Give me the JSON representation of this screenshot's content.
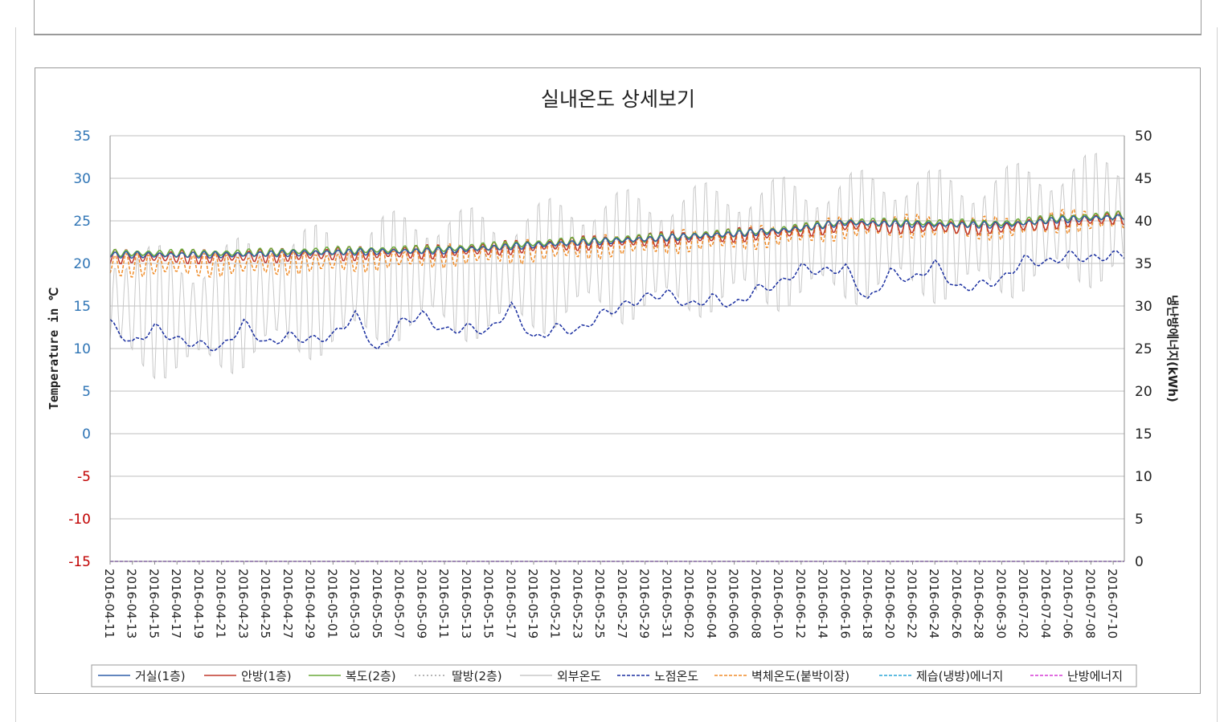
{
  "chart_data": {
    "type": "line",
    "title": "실내온도 상세보기",
    "ylabel": "Temperature in ℃",
    "y2label": "냉난방에너지(kWh)",
    "ylim": [
      -15,
      35
    ],
    "y2lim": [
      0,
      50
    ],
    "yticks": [
      "35",
      "30",
      "25",
      "20",
      "15",
      "10",
      "5",
      "0",
      "-5",
      "-10",
      "-15"
    ],
    "y2ticks": [
      "50",
      "45",
      "40",
      "35",
      "30",
      "25",
      "20",
      "15",
      "10",
      "5",
      "0"
    ],
    "grid": true,
    "legend_position": "bottom",
    "colors": {
      "title": "#222222",
      "ytick_positive": "#2e74b5",
      "ytick_negative": "#c00000",
      "grid": "#bfbfbf",
      "axis": "#8c8c8c"
    },
    "x_range": [
      "2016-04-11",
      "2016-07-11"
    ],
    "x_ticks": [
      "2016-04-11",
      "2016-04-13",
      "2016-04-15",
      "2016-04-17",
      "2016-04-19",
      "2016-04-21",
      "2016-04-23",
      "2016-04-25",
      "2016-04-27",
      "2016-04-29",
      "2016-05-01",
      "2016-05-03",
      "2016-05-05",
      "2016-05-07",
      "2016-05-09",
      "2016-05-11",
      "2016-05-13",
      "2016-05-15",
      "2016-05-17",
      "2016-05-19",
      "2016-05-21",
      "2016-05-23",
      "2016-05-25",
      "2016-05-27",
      "2016-05-29",
      "2016-05-31",
      "2016-06-02",
      "2016-06-04",
      "2016-06-06",
      "2016-06-08",
      "2016-06-10",
      "2016-06-12",
      "2016-06-14",
      "2016-06-16",
      "2016-06-18",
      "2016-06-20",
      "2016-06-22",
      "2016-06-24",
      "2016-06-26",
      "2016-06-28",
      "2016-06-30",
      "2016-07-02",
      "2016-07-04",
      "2016-07-06",
      "2016-07-08",
      "2016-07-10"
    ],
    "series": [
      {
        "name": "거실(1층)",
        "color": "#2e5ea8",
        "dash": "solid",
        "axis": "left",
        "x": [
          "2016-04-11",
          "2016-04-21",
          "2016-05-01",
          "2016-05-11",
          "2016-05-21",
          "2016-05-31",
          "2016-06-10",
          "2016-06-16",
          "2016-06-22",
          "2016-06-30",
          "2016-07-05",
          "2016-07-11"
        ],
        "y": [
          21.0,
          21.0,
          21.3,
          21.5,
          22.3,
          23.0,
          23.8,
          24.8,
          24.6,
          24.5,
          25.1,
          25.5
        ],
        "daily_swing": 0.4
      },
      {
        "name": "안방(1층)",
        "color": "#c0392b",
        "dash": "solid",
        "axis": "left",
        "x": [
          "2016-04-11",
          "2016-04-21",
          "2016-05-01",
          "2016-05-11",
          "2016-05-21",
          "2016-05-31",
          "2016-06-10",
          "2016-06-16",
          "2016-06-22",
          "2016-06-30",
          "2016-07-05",
          "2016-07-11"
        ],
        "y": [
          20.8,
          20.8,
          21.1,
          21.4,
          22.2,
          22.9,
          23.6,
          24.5,
          24.3,
          24.2,
          24.9,
          25.4
        ],
        "daily_swing": 0.9
      },
      {
        "name": "복도(2층)",
        "color": "#6aaa3a",
        "dash": "solid",
        "axis": "left",
        "x": [
          "2016-04-11",
          "2016-04-21",
          "2016-05-01",
          "2016-05-11",
          "2016-05-21",
          "2016-05-31",
          "2016-06-10",
          "2016-06-16",
          "2016-06-22",
          "2016-06-30",
          "2016-07-05",
          "2016-07-11"
        ],
        "y": [
          21.2,
          21.2,
          21.5,
          21.7,
          22.5,
          23.1,
          23.9,
          24.9,
          24.8,
          24.7,
          25.3,
          25.7
        ],
        "daily_swing": 0.5
      },
      {
        "name": "딸방(2층)",
        "color": "#9e9e9e",
        "dash": "dot",
        "axis": "left",
        "x": [
          "2016-04-11",
          "2016-04-21",
          "2016-05-01",
          "2016-05-11",
          "2016-05-21",
          "2016-05-31",
          "2016-06-10",
          "2016-06-16",
          "2016-06-22",
          "2016-06-30",
          "2016-07-05",
          "2016-07-11"
        ],
        "y": [
          21.0,
          21.0,
          21.2,
          21.5,
          22.2,
          22.9,
          23.7,
          24.6,
          24.5,
          24.4,
          25.0,
          25.4
        ],
        "daily_swing": 0.3
      },
      {
        "name": "외부온도",
        "color": "#c8c8c8",
        "dash": "solid",
        "axis": "left",
        "x": [
          "2016-04-11",
          "2016-04-18",
          "2016-04-25",
          "2016-05-02",
          "2016-05-09",
          "2016-05-16",
          "2016-05-23",
          "2016-05-30",
          "2016-06-06",
          "2016-06-13",
          "2016-06-20",
          "2016-06-27",
          "2016-07-04",
          "2016-07-11"
        ],
        "y": [
          15.5,
          13.5,
          16.0,
          17.0,
          19.0,
          18.5,
          20.5,
          21.0,
          22.0,
          22.5,
          23.5,
          23.0,
          24.5,
          25.5
        ],
        "daily_swing": 8.5
      },
      {
        "name": "노점온도",
        "color": "#1a2fa0",
        "dash": "dash",
        "axis": "left",
        "x": [
          "2016-04-11",
          "2016-04-13",
          "2016-04-15",
          "2016-04-17",
          "2016-04-19",
          "2016-04-21",
          "2016-04-23",
          "2016-04-25",
          "2016-04-27",
          "2016-04-29",
          "2016-05-01",
          "2016-05-03",
          "2016-05-05",
          "2016-05-07",
          "2016-05-09",
          "2016-05-11",
          "2016-05-13",
          "2016-05-15",
          "2016-05-17",
          "2016-05-19",
          "2016-05-21",
          "2016-05-23",
          "2016-05-25",
          "2016-05-27",
          "2016-05-29",
          "2016-05-31",
          "2016-06-02",
          "2016-06-04",
          "2016-06-06",
          "2016-06-08",
          "2016-06-10",
          "2016-06-12",
          "2016-06-14",
          "2016-06-16",
          "2016-06-18",
          "2016-06-20",
          "2016-06-22",
          "2016-06-24",
          "2016-06-26",
          "2016-06-28",
          "2016-06-30",
          "2016-07-02",
          "2016-07-04",
          "2016-07-06",
          "2016-07-08",
          "2016-07-10",
          "2016-07-11"
        ],
        "y": [
          13,
          10.5,
          12.5,
          11,
          10.5,
          10,
          13,
          10.5,
          11.5,
          11,
          11.5,
          14,
          9.5,
          13,
          14,
          12,
          12.5,
          12,
          15,
          11,
          12.5,
          12,
          14,
          15,
          16,
          16.5,
          15,
          16,
          15,
          17,
          17.5,
          19.5,
          19,
          19.5,
          15.5,
          19,
          18,
          20,
          17,
          17.5,
          18,
          20.5,
          20,
          21,
          20.5,
          21,
          21
        ]
      },
      {
        "name": "벽체온도(붙박이장)",
        "color": "#f08c28",
        "dash": "dash",
        "axis": "left",
        "x": [
          "2016-04-11",
          "2016-04-21",
          "2016-05-01",
          "2016-05-11",
          "2016-05-21",
          "2016-05-31",
          "2016-06-10",
          "2016-06-16",
          "2016-06-22",
          "2016-06-30",
          "2016-07-05",
          "2016-07-11"
        ],
        "y": [
          19.8,
          19.8,
          20.2,
          20.9,
          21.6,
          22.5,
          23.2,
          24.2,
          24.4,
          24.1,
          24.9,
          25.2
        ],
        "daily_swing": 1.5
      },
      {
        "name": "제습(냉방)에너지",
        "color": "#2aa5d6",
        "dash": "dash",
        "axis": "right",
        "x": [
          "2016-04-11",
          "2016-07-11"
        ],
        "y": [
          0,
          0
        ]
      },
      {
        "name": "난방에너지",
        "color": "#d63ad6",
        "dash": "dash",
        "axis": "right",
        "x": [
          "2016-04-11",
          "2016-07-11"
        ],
        "y": [
          0,
          0
        ]
      }
    ]
  }
}
